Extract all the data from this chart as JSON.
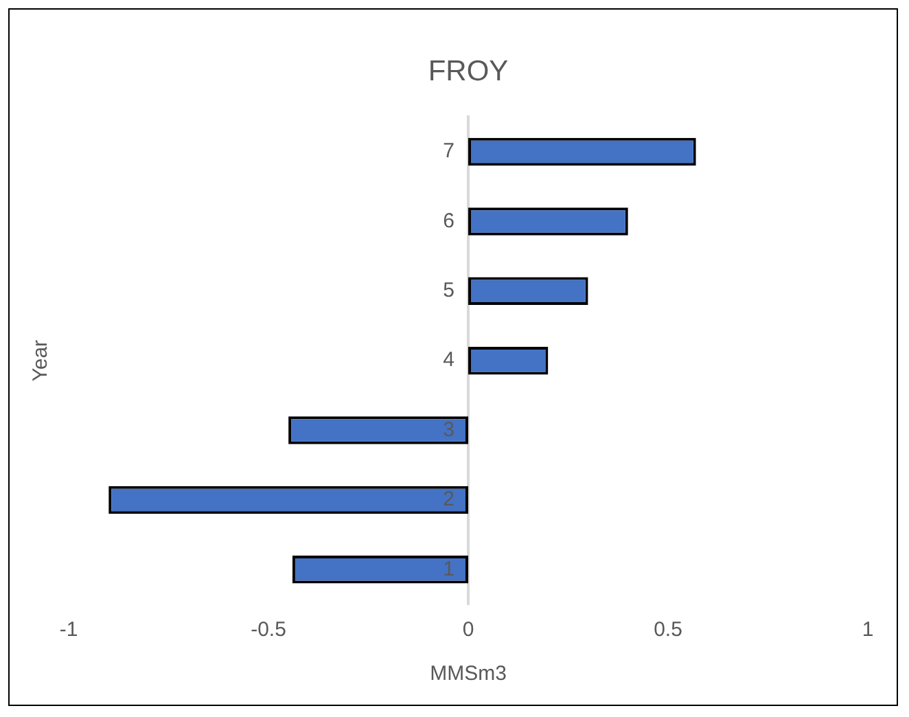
{
  "chart_data": {
    "type": "bar",
    "orientation": "horizontal",
    "title": "FROY",
    "xlabel": "MMSm3",
    "ylabel": "Year",
    "categories": [
      "7",
      "6",
      "5",
      "4",
      "3",
      "2",
      "1"
    ],
    "values": [
      0.57,
      0.4,
      0.3,
      0.2,
      -0.45,
      -0.9,
      -0.44
    ],
    "color": "#4472c4",
    "xlim": [
      -1,
      1
    ],
    "xticks": [
      -1,
      -0.5,
      0,
      0.5,
      1
    ],
    "grid": false,
    "legend": false
  }
}
